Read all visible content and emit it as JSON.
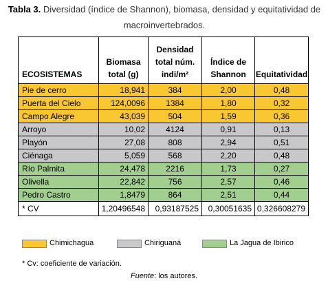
{
  "caption": {
    "label": "Tabla 3.",
    "text": "Diversidad (índice de Shannon), biomasa, densidad y equitatividad de macroinvertebrados."
  },
  "table": {
    "headers": {
      "ecosistemas": "ECOSISTEMAS",
      "biomasa": "Biomasa total (g)",
      "densidad": "Densidad total núm. indi/m²",
      "shannon": "Índice de Shannon",
      "equitatividad": "Equitatividad"
    },
    "rows": [
      {
        "name": "Pie de cerro",
        "biomasa": "18,941",
        "densidad": "384",
        "shannon": "2,00",
        "equitatividad": "0,48",
        "color": "#f9c732"
      },
      {
        "name": "Puerta del Cielo",
        "biomasa": "124,0096",
        "densidad": "1384",
        "shannon": "1,80",
        "equitatividad": "0,32",
        "color": "#f9c732"
      },
      {
        "name": "Campo Alegre",
        "biomasa": "43,039",
        "densidad": "504",
        "shannon": "1,59",
        "equitatividad": "0,36",
        "color": "#f9c732"
      },
      {
        "name": "Arroyo",
        "biomasa": "10,02",
        "densidad": "4124",
        "shannon": "0,91",
        "equitatividad": "0,13",
        "color": "#c8c8cb"
      },
      {
        "name": "Playón",
        "biomasa": "27,08",
        "densidad": "808",
        "shannon": "2,94",
        "equitatividad": "0,51",
        "color": "#c8c8cb"
      },
      {
        "name": "Ciénaga",
        "biomasa": "5,059",
        "densidad": "568",
        "shannon": "2,20",
        "equitatividad": "0,48",
        "color": "#c8c8cb"
      },
      {
        "name": "Río Palmita",
        "biomasa": "24,478",
        "densidad": "2216",
        "shannon": "1,73",
        "equitatividad": "0,27",
        "color": "#a2cf8f"
      },
      {
        "name": "Olivella",
        "biomasa": "22,842",
        "densidad": "756",
        "shannon": "2,57",
        "equitatividad": "0,46",
        "color": "#a2cf8f"
      },
      {
        "name": "Pedro Castro",
        "biomasa": "1,8479",
        "densidad": "864",
        "shannon": "2,51",
        "equitatividad": "0,44",
        "color": "#a2cf8f"
      }
    ],
    "cv": {
      "name": "* CV",
      "biomasa": "1,20496548",
      "densidad": "0,93187525",
      "shannon": "0,30051635",
      "equitatividad": "0,326608279"
    }
  },
  "legend": [
    {
      "label": "Chimichagua",
      "color": "#f9c732"
    },
    {
      "label": "Chiriguaná",
      "color": "#c8c8cb"
    },
    {
      "label": "La Jagua de Ibirico",
      "color": "#a2cf8f"
    }
  ],
  "note": "* Cv: coeficiente de variación.",
  "source": {
    "label": "Fuente",
    "text": ": los autores."
  }
}
